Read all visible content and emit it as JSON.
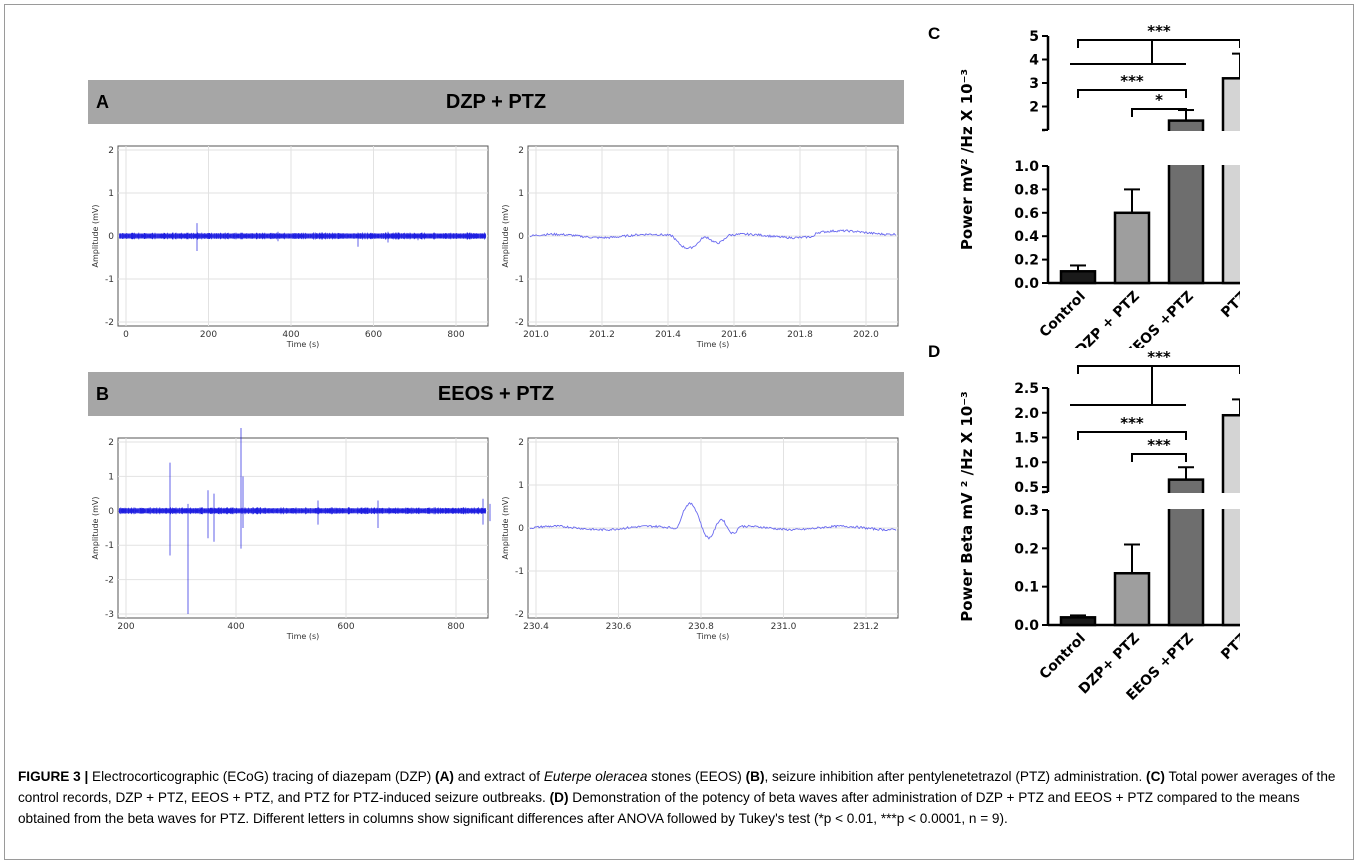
{
  "panels": {
    "A": {
      "letter": "A",
      "title": "DZP + PTZ"
    },
    "B": {
      "letter": "B",
      "title": "EEOS + PTZ"
    },
    "C": {
      "letter": "C"
    },
    "D": {
      "letter": "D"
    }
  },
  "traces": {
    "ylabel": "Amplitude (mV)",
    "xlabel": "Time (s)",
    "color": "#1f1fe0",
    "A_full": {
      "yticks": [
        "2",
        "1",
        "0",
        "-1",
        "-2"
      ],
      "xticks": [
        "0",
        "200",
        "400",
        "600",
        "800"
      ]
    },
    "A_zoom": {
      "yticks": [
        "2",
        "1",
        "0",
        "-1",
        "-2"
      ],
      "xticks": [
        "201.0",
        "201.2",
        "201.4",
        "201.6",
        "201.8",
        "202.0"
      ]
    },
    "B_full": {
      "yticks": [
        "2",
        "1",
        "0",
        "-1",
        "-2",
        "-3"
      ],
      "xticks": [
        "200",
        "400",
        "600",
        "800"
      ]
    },
    "B_zoom": {
      "yticks": [
        "2",
        "1",
        "0",
        "-1",
        "-2"
      ],
      "xticks": [
        "230.4",
        "230.6",
        "230.8",
        "231.0",
        "231.2"
      ]
    }
  },
  "chart_data": [
    {
      "id": "C",
      "type": "bar",
      "categories": [
        "Control",
        "DZP + PTZ",
        "EEOS +PTZ",
        "PTZ"
      ],
      "values": [
        0.1,
        0.6,
        1.4,
        3.2
      ],
      "errors": [
        0.05,
        0.2,
        0.45,
        1.05
      ],
      "colors": [
        "#1a1a1a",
        "#9e9e9e",
        "#6e6e6e",
        "#d4d4d4"
      ],
      "ylabel": "Power mV² /Hz X 10⁻³",
      "y_axis_broken": true,
      "ylim_lower": [
        0,
        1.0
      ],
      "ylim_upper": [
        1,
        5
      ],
      "yticks_lower": [
        "0.0",
        "0.2",
        "0.4",
        "0.6",
        "0.8",
        "1.0"
      ],
      "yticks_upper": [
        "2",
        "3",
        "4",
        "5"
      ],
      "significance": [
        "***",
        "***",
        "*"
      ]
    },
    {
      "id": "D",
      "type": "bar",
      "categories": [
        "Control",
        "DZP+ PTZ",
        "EEOS +PTZ",
        "PTZ"
      ],
      "values": [
        0.02,
        0.135,
        0.65,
        1.95
      ],
      "errors": [
        0.005,
        0.075,
        0.25,
        0.32
      ],
      "colors": [
        "#1a1a1a",
        "#9e9e9e",
        "#6e6e6e",
        "#d4d4d4"
      ],
      "ylabel": "Power Beta mV ² /Hz X 10⁻³",
      "y_axis_broken": true,
      "ylim_lower": [
        0,
        0.3
      ],
      "ylim_upper": [
        0.4,
        2.5
      ],
      "yticks_lower": [
        "0.0",
        "0.1",
        "0.2",
        "0.3"
      ],
      "yticks_upper": [
        "0.5",
        "1.0",
        "1.5",
        "2.0",
        "2.5"
      ],
      "significance": [
        "***",
        "***",
        "***"
      ]
    }
  ],
  "caption": {
    "fig": "FIGURE 3 |",
    "t1": " Electrocorticographic (ECoG) tracing of diazepam (DZP) ",
    "bA": "(A)",
    "t2": " and extract of ",
    "species": "Euterpe oleracea",
    "t3": " stones (EEOS) ",
    "bB": "(B)",
    "t4": ", seizure inhibition after pentylenetetrazol (PTZ) administration. ",
    "bC": "(C)",
    "t5": " Total power averages of the control records, DZP + PTZ, EEOS + PTZ, and PTZ for PTZ-induced seizure outbreaks. ",
    "bD": "(D)",
    "t6": " Demonstration of the potency of beta waves after administration of DZP + PTZ and EEOS + PTZ compared to the means obtained from the beta waves for PTZ. Different letters in columns show significant differences after ANOVA followed by Tukey's test (*p < 0.01, ***p < 0.0001, n = 9)."
  }
}
